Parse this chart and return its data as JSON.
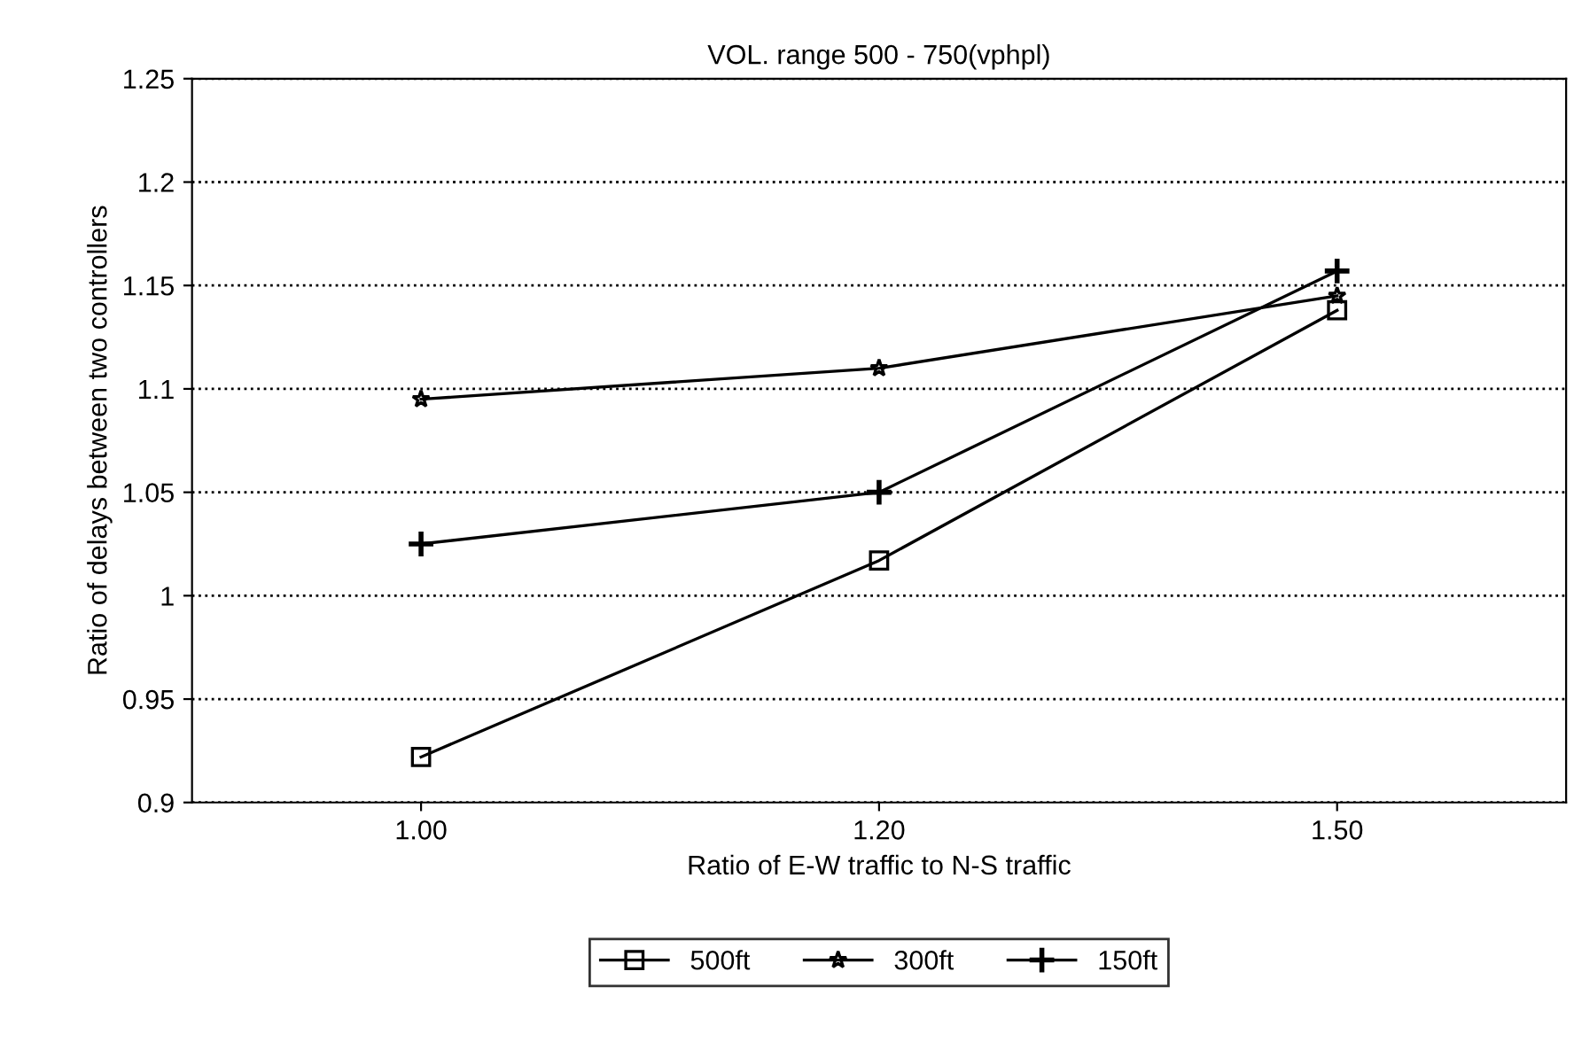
{
  "chart_data": {
    "type": "line",
    "title": "VOL. range 500 - 750(vphpl)",
    "xlabel": "Ratio of E-W traffic to N-S traffic",
    "ylabel": "Ratio of delays between two controllers",
    "categories": [
      "1.00",
      "1.20",
      "1.50"
    ],
    "series": [
      {
        "name": "500ft",
        "color": "#000000",
        "marker": "square",
        "values": [
          0.922,
          1.017,
          1.138
        ]
      },
      {
        "name": "300ft",
        "color": "#000000",
        "marker": "star",
        "values": [
          1.095,
          1.11,
          1.145
        ]
      },
      {
        "name": "150ft",
        "color": "#000000",
        "marker": "cross",
        "values": [
          1.025,
          1.05,
          1.157
        ]
      }
    ],
    "ylim": [
      0.9,
      1.25
    ],
    "yticks": [
      0.9,
      0.95,
      1,
      1.05,
      1.1,
      1.15,
      1.2,
      1.25
    ],
    "grid": "y",
    "legend": "bottom",
    "line_style": "solid"
  }
}
